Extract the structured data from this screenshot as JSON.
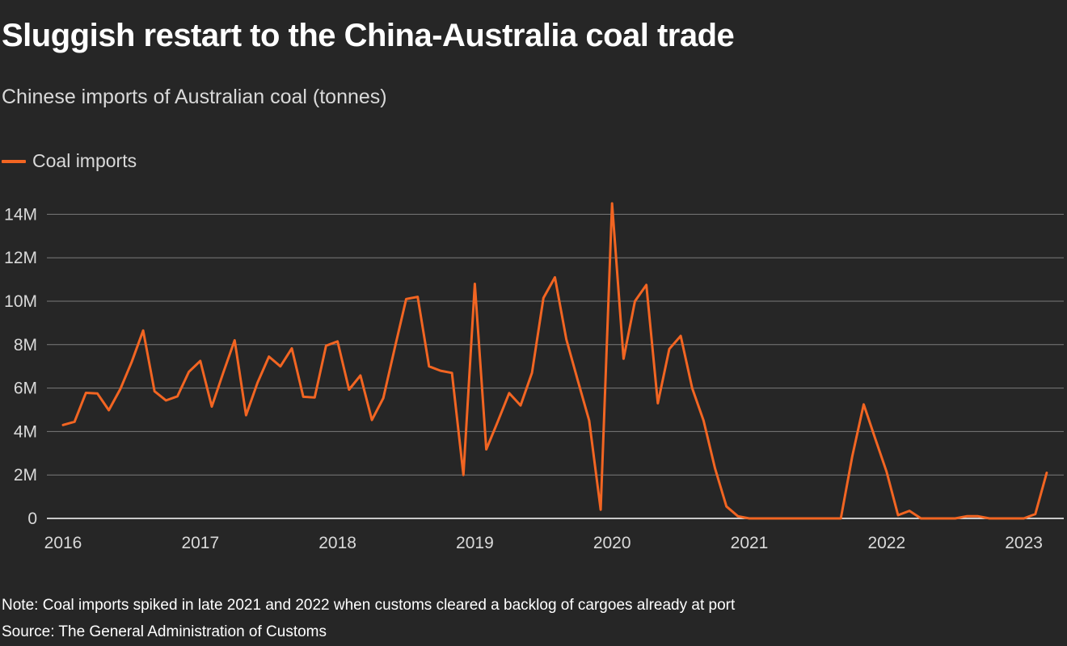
{
  "header": {
    "title": "Sluggish restart to the China-Australia coal trade",
    "subtitle": "Chinese imports of Australian coal (tonnes)"
  },
  "legend": {
    "label": "Coal imports"
  },
  "footer": {
    "note": "Note: Coal imports spiked in late 2021 and 2022 when customs cleared a backlog of cargoes already at port",
    "source": "Source: The General Administration of Customs"
  },
  "colors": {
    "background": "#262626",
    "line": "#f26522",
    "grid": "#7a7a7a",
    "text": "#d9d9d9"
  },
  "chart_data": {
    "type": "line",
    "title": "Sluggish restart to the China-Australia coal trade",
    "subtitle": "Chinese imports of Australian coal (tonnes)",
    "xlabel": "",
    "ylabel": "",
    "x_tick_labels": [
      "2016",
      "2017",
      "2018",
      "2019",
      "2020",
      "2021",
      "2022",
      "2023"
    ],
    "y_ticks": [
      0,
      2000000,
      4000000,
      6000000,
      8000000,
      10000000,
      12000000,
      14000000
    ],
    "y_tick_labels": [
      "0",
      "2M",
      "4M",
      "6M",
      "8M",
      "10M",
      "12M",
      "14M"
    ],
    "ylim": [
      0,
      14000000
    ],
    "grid": true,
    "legend_position": "top-left",
    "series": [
      {
        "name": "Coal imports",
        "x": [
          "2016-01",
          "2016-02",
          "2016-03",
          "2016-04",
          "2016-05",
          "2016-06",
          "2016-07",
          "2016-08",
          "2016-09",
          "2016-10",
          "2016-11",
          "2016-12",
          "2017-01",
          "2017-02",
          "2017-03",
          "2017-04",
          "2017-05",
          "2017-06",
          "2017-07",
          "2017-08",
          "2017-09",
          "2017-10",
          "2017-11",
          "2017-12",
          "2018-01",
          "2018-02",
          "2018-03",
          "2018-04",
          "2018-05",
          "2018-06",
          "2018-07",
          "2018-08",
          "2018-09",
          "2018-10",
          "2018-11",
          "2018-12",
          "2019-01",
          "2019-02",
          "2019-03",
          "2019-04",
          "2019-05",
          "2019-06",
          "2019-07",
          "2019-08",
          "2019-09",
          "2019-10",
          "2019-11",
          "2019-12",
          "2020-01",
          "2020-02",
          "2020-03",
          "2020-04",
          "2020-05",
          "2020-06",
          "2020-07",
          "2020-08",
          "2020-09",
          "2020-10",
          "2020-11",
          "2020-12",
          "2021-01",
          "2021-02",
          "2021-03",
          "2021-04",
          "2021-05",
          "2021-06",
          "2021-07",
          "2021-08",
          "2021-09",
          "2021-10",
          "2021-11",
          "2021-12",
          "2022-01",
          "2022-02",
          "2022-03",
          "2022-04",
          "2022-05",
          "2022-06",
          "2022-07",
          "2022-08",
          "2022-09",
          "2022-10",
          "2022-11",
          "2022-12",
          "2023-01",
          "2023-02",
          "2023-03"
        ],
        "values": [
          4300000,
          4450000,
          5780000,
          5750000,
          4980000,
          5950000,
          7200000,
          8650000,
          5850000,
          5430000,
          5620000,
          6750000,
          7250000,
          5150000,
          6700000,
          8200000,
          4750000,
          6250000,
          7450000,
          7000000,
          7830000,
          5600000,
          5570000,
          7950000,
          8150000,
          5930000,
          6580000,
          4530000,
          5540000,
          7850000,
          10100000,
          10200000,
          7000000,
          6800000,
          6700000,
          2000000,
          10800000,
          3180000,
          4450000,
          5770000,
          5200000,
          6700000,
          10150000,
          11100000,
          8250000,
          6350000,
          4500000,
          400000,
          14500000,
          7350000,
          10000000,
          10750000,
          5300000,
          7800000,
          8400000,
          6000000,
          4500000,
          2300000,
          550000,
          100000,
          0,
          0,
          0,
          0,
          0,
          0,
          0,
          0,
          0,
          2850000,
          5250000,
          3680000,
          2150000,
          150000,
          350000,
          0,
          0,
          0,
          0,
          100000,
          100000,
          0,
          0,
          0,
          0,
          200000,
          2100000
        ]
      }
    ]
  }
}
